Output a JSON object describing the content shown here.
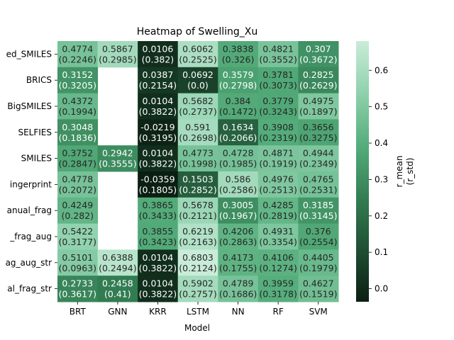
{
  "chart_data": {
    "type": "heatmap",
    "title": "Heatmap of Swelling_Xu",
    "xlabel": "Model",
    "ylabel": "",
    "x_categories": [
      "BRT",
      "GNN",
      "KRR",
      "LSTM",
      "NN",
      "RF",
      "SVM"
    ],
    "y_categories": [
      "ed_SMILES",
      "BRICS",
      "BigSMILES",
      "SELFIES",
      "SMILES",
      "ingerprint",
      "anual_frag",
      "_frag_aug",
      "ag_aug_str",
      "al_frag_str"
    ],
    "mean": [
      [
        0.4774,
        0.5867,
        0.0106,
        0.6062,
        0.3838,
        0.4821,
        0.307
      ],
      [
        0.3152,
        null,
        0.0387,
        0.0692,
        0.3579,
        0.3781,
        0.2825
      ],
      [
        0.4372,
        null,
        0.0104,
        0.5682,
        0.384,
        0.3779,
        0.4975
      ],
      [
        0.3048,
        null,
        -0.0219,
        0.591,
        0.1634,
        0.3908,
        0.3656
      ],
      [
        0.3752,
        0.2942,
        0.0104,
        0.4773,
        0.4728,
        0.4871,
        0.4944
      ],
      [
        0.4778,
        null,
        -0.0359,
        0.1503,
        0.586,
        0.4976,
        0.4765
      ],
      [
        0.4249,
        null,
        0.3865,
        0.5678,
        0.3005,
        0.4285,
        0.3185
      ],
      [
        0.5422,
        null,
        0.3855,
        0.6219,
        0.4206,
        0.4931,
        0.376
      ],
      [
        0.5101,
        0.6388,
        0.0104,
        0.6803,
        0.4173,
        0.4106,
        0.4405
      ],
      [
        0.2733,
        0.2458,
        0.0104,
        0.5902,
        0.4789,
        0.3959,
        0.4627
      ]
    ],
    "std": [
      [
        "0.2246",
        "0.2985",
        "0.382",
        "0.2525",
        "0.326",
        "0.3552",
        "0.3672"
      ],
      [
        "0.3205",
        null,
        "0.2154",
        "0.0",
        "0.2798",
        "0.3073",
        "0.2629"
      ],
      [
        "0.1994",
        null,
        "0.3822",
        "0.2737",
        "0.1472",
        "0.3243",
        "0.1897"
      ],
      [
        "0.1836",
        null,
        "0.3195",
        "0.2698",
        "0.2066",
        "0.2319",
        "0.3275"
      ],
      [
        "0.2847",
        "0.3555",
        "0.3822",
        "0.1998",
        "0.1985",
        "0.1919",
        "0.2349"
      ],
      [
        "0.2072",
        null,
        "0.1805",
        "0.2852",
        "0.2586",
        "0.2513",
        "0.2531"
      ],
      [
        "0.282",
        null,
        "0.3433",
        "0.2121",
        "0.1967",
        "0.2819",
        "0.3145"
      ],
      [
        "0.3177",
        null,
        "0.3423",
        "0.2163",
        "0.2863",
        "0.3354",
        "0.2554"
      ],
      [
        "0.0963",
        "0.2494",
        "0.3822",
        "0.2124",
        "0.1755",
        "0.1274",
        "0.1979"
      ],
      [
        "0.3617",
        "0.41",
        "0.3822",
        "0.2757",
        "0.1686",
        "0.3178",
        "0.1519"
      ]
    ],
    "colorbar": {
      "label_line1": "r_mean",
      "label_line2": "(r_std)",
      "range": [
        -0.0359,
        0.6803
      ],
      "ticks": [
        "0.0",
        "0.1",
        "0.2",
        "0.3",
        "0.4",
        "0.5",
        "0.6"
      ],
      "colormap": [
        "#0b1e12",
        "#1f4f33",
        "#337e53",
        "#55ad7b",
        "#8fd1ad",
        "#c9ecd9"
      ]
    }
  }
}
